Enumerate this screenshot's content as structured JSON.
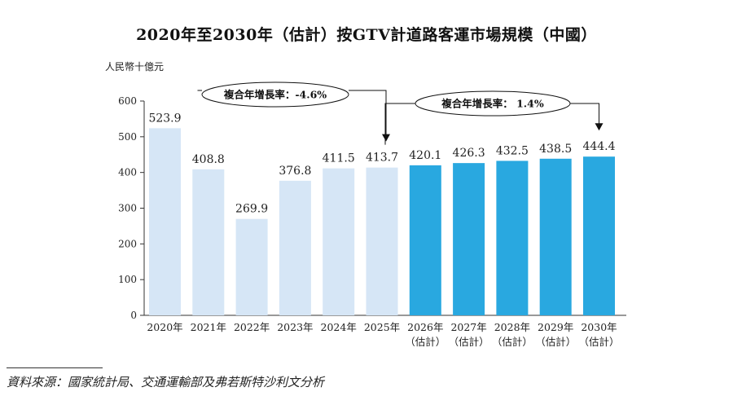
{
  "title": "2020年至2030年（估計）按GTV計道路客運市場規模（中國）",
  "source": "資料來源：國家統計局、交通運輸部及弗若斯特沙利文分析",
  "colors": {
    "historical": "#d6e6f6",
    "forecast": "#29a8e0",
    "axis": "#333333"
  },
  "chart_data": {
    "type": "bar",
    "ylabel": "人民幣十億元",
    "ylim": [
      0,
      600
    ],
    "yticks": [
      "0",
      "100",
      "200",
      "300",
      "400",
      "500",
      "600"
    ],
    "categories": [
      {
        "line1": "2020年",
        "line2": ""
      },
      {
        "line1": "2021年",
        "line2": ""
      },
      {
        "line1": "2022年",
        "line2": ""
      },
      {
        "line1": "2023年",
        "line2": ""
      },
      {
        "line1": "2024年",
        "line2": ""
      },
      {
        "line1": "2025年",
        "line2": ""
      },
      {
        "line1": "2026年",
        "line2": "（估計）"
      },
      {
        "line1": "2027年",
        "line2": "（估計）"
      },
      {
        "line1": "2028年",
        "line2": "（估計）"
      },
      {
        "line1": "2029年",
        "line2": "（估計）"
      },
      {
        "line1": "2030年",
        "line2": "（估計）"
      }
    ],
    "values": [
      523.9,
      408.8,
      269.9,
      376.8,
      411.5,
      413.7,
      420.1,
      426.3,
      432.5,
      438.5,
      444.4
    ],
    "value_labels": [
      "523.9",
      "408.8",
      "269.9",
      "376.8",
      "411.5",
      "413.7",
      "420.1",
      "426.3",
      "432.5",
      "438.5",
      "444.4"
    ],
    "forecast_start_index": 6,
    "annotations": [
      {
        "text": "複合年增長率：-4.6%",
        "from_index": 0,
        "to_index": 5
      },
      {
        "text": "複合年增長率： 1.4%",
        "from_index": 5,
        "to_index": 10
      }
    ]
  }
}
